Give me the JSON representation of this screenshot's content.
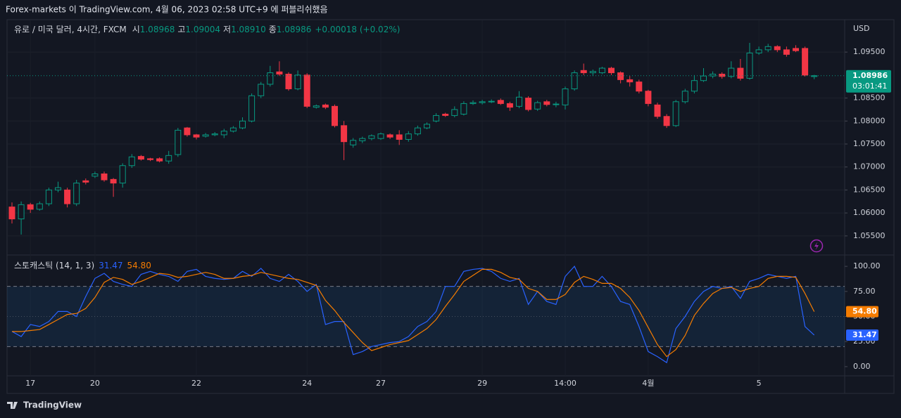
{
  "page_title": "Forex-markets 이 TradingView.com, 4월 06, 2023 02:58 UTC+9 에 퍼블리쉬했음",
  "brand": "TradingView",
  "chart_data": [
    {
      "type": "candlestick",
      "symbol": "유로 / 미국 달러, 4시간, FXCM",
      "currency": "USD",
      "ohlc_legend": [
        {
          "key": "시",
          "value": "1.08968"
        },
        {
          "key": "고",
          "value": "1.09004"
        },
        {
          "key": "저",
          "value": "1.08910"
        },
        {
          "key": "종",
          "value": "1.08986"
        }
      ],
      "change": "+0.00018 (+0.02%)",
      "last_price_label": "1.08986",
      "countdown": "03:01:41",
      "up_color": "#089981",
      "down_color": "#f23645",
      "categories": [
        null,
        null,
        "17",
        null,
        null,
        null,
        null,
        null,
        null,
        "20",
        null,
        null,
        null,
        null,
        null,
        null,
        null,
        null,
        null,
        null,
        "22",
        null,
        null,
        null,
        null,
        null,
        null,
        null,
        null,
        null,
        null,
        null,
        "24",
        null,
        null,
        null,
        null,
        null,
        null,
        null,
        "27",
        null,
        null,
        null,
        null,
        null,
        null,
        null,
        null,
        null,
        null,
        "29",
        null,
        null,
        null,
        null,
        null,
        null,
        null,
        null,
        "14:00",
        null,
        null,
        null,
        null,
        null,
        null,
        null,
        null,
        "4월",
        null,
        null,
        null,
        null,
        null,
        null,
        null,
        null,
        null,
        null,
        null,
        "5",
        null,
        null,
        null,
        null,
        null,
        null
      ],
      "open": [
        1.0613,
        1.0587,
        1.0618,
        1.0608,
        1.062,
        1.065,
        1.065,
        1.062,
        1.067,
        1.068,
        1.0685,
        1.0673,
        1.0665,
        1.0703,
        1.0723,
        1.0718,
        1.0718,
        1.0713,
        1.0727,
        1.0785,
        1.077,
        1.0767,
        1.077,
        1.077,
        1.0778,
        1.0785,
        1.08,
        1.0855,
        1.088,
        1.0907,
        1.0902,
        1.087,
        1.09,
        1.083,
        1.0835,
        1.0832,
        1.079,
        1.0748,
        1.0757,
        1.0762,
        1.0762,
        1.077,
        1.077,
        1.076,
        1.0772,
        1.0785,
        1.08,
        1.0815,
        1.0812,
        1.0815,
        1.0838,
        1.084,
        1.0842,
        1.0845,
        1.0838,
        1.0832,
        1.085,
        1.0826,
        1.0842,
        1.0836,
        1.0835,
        1.087,
        1.091,
        1.0905,
        1.0905,
        1.0915,
        1.0905,
        1.089,
        1.0885,
        1.0865,
        1.0835,
        1.081,
        1.079,
        1.0842,
        1.0865,
        1.0888,
        1.0898,
        1.0902,
        1.0897,
        1.0915,
        1.0893,
        1.0948,
        1.0955,
        1.0962,
        1.0955,
        1.0958,
        1.0958,
        1.08968
      ],
      "high": [
        1.0623,
        1.0625,
        1.0622,
        1.0625,
        1.0655,
        1.0668,
        1.0655,
        1.0672,
        1.0675,
        1.069,
        1.069,
        1.0676,
        1.0708,
        1.0728,
        1.0726,
        1.072,
        1.0721,
        1.0735,
        1.0785,
        1.0787,
        1.0772,
        1.0774,
        1.0776,
        1.0783,
        1.0789,
        1.0808,
        1.086,
        1.0885,
        1.092,
        1.093,
        1.0906,
        1.091,
        1.0904,
        1.0836,
        1.0838,
        1.0836,
        1.08,
        1.0763,
        1.0766,
        1.0771,
        1.0775,
        1.0773,
        1.078,
        1.0778,
        1.079,
        1.0797,
        1.0817,
        1.0818,
        1.0832,
        1.0843,
        1.0845,
        1.0846,
        1.0847,
        1.0849,
        1.0842,
        1.0865,
        1.0854,
        1.0844,
        1.0846,
        1.0842,
        1.0875,
        1.091,
        1.0925,
        1.0912,
        1.0918,
        1.0918,
        1.0908,
        1.0898,
        1.089,
        1.0868,
        1.084,
        1.0815,
        1.0846,
        1.087,
        1.09,
        1.0915,
        1.0908,
        1.0906,
        1.093,
        1.0935,
        1.097,
        1.0962,
        1.0968,
        1.0965,
        1.0962,
        1.0965,
        1.0962,
        1.09004
      ],
      "low": [
        1.0577,
        1.0553,
        1.06,
        1.0605,
        1.0615,
        1.0645,
        1.0612,
        1.0615,
        1.0662,
        1.0676,
        1.0668,
        1.0635,
        1.0655,
        1.0698,
        1.0714,
        1.0713,
        1.071,
        1.0707,
        1.0722,
        1.0766,
        1.076,
        1.0764,
        1.0767,
        1.0763,
        1.0775,
        1.0782,
        1.0797,
        1.085,
        1.0875,
        1.0898,
        1.0866,
        1.0867,
        1.0828,
        1.0827,
        1.0826,
        1.0786,
        1.0715,
        1.0742,
        1.0752,
        1.0758,
        1.0759,
        1.0761,
        1.0748,
        1.0755,
        1.0768,
        1.0782,
        1.0797,
        1.0809,
        1.0808,
        1.0812,
        1.0835,
        1.0836,
        1.0839,
        1.0835,
        1.0822,
        1.0828,
        1.0821,
        1.0822,
        1.0832,
        1.083,
        1.0825,
        1.0866,
        1.09,
        1.0898,
        1.0902,
        1.09,
        1.0882,
        1.0875,
        1.086,
        1.0832,
        1.0805,
        1.0785,
        1.0787,
        1.0838,
        1.086,
        1.0885,
        1.0893,
        1.0892,
        1.0893,
        1.0888,
        1.089,
        1.0944,
        1.095,
        1.095,
        1.094,
        1.095,
        1.0897,
        1.0891
      ],
      "close": [
        1.0587,
        1.0618,
        1.0608,
        1.062,
        1.065,
        1.0655,
        1.062,
        1.0665,
        1.0667,
        1.0685,
        1.0672,
        1.0665,
        1.0703,
        1.0722,
        1.0717,
        1.0716,
        1.0713,
        1.0725,
        1.078,
        1.077,
        1.0765,
        1.077,
        1.0772,
        1.0778,
        1.0785,
        1.08,
        1.0855,
        1.088,
        1.0905,
        1.0902,
        1.087,
        1.09,
        1.0832,
        1.0833,
        1.083,
        1.079,
        1.0755,
        1.0758,
        1.0762,
        1.0768,
        1.0772,
        1.0765,
        1.076,
        1.0772,
        1.0785,
        1.0793,
        1.0812,
        1.0812,
        1.0825,
        1.0838,
        1.084,
        1.0842,
        1.0843,
        1.0838,
        1.083,
        1.0852,
        1.0825,
        1.084,
        1.0836,
        1.0837,
        1.087,
        1.0905,
        1.0905,
        1.0908,
        1.0915,
        1.0905,
        1.089,
        1.0885,
        1.0865,
        1.0838,
        1.081,
        1.079,
        1.0842,
        1.0865,
        1.0888,
        1.0898,
        1.0902,
        1.0897,
        1.0915,
        1.0893,
        1.0948,
        1.0955,
        1.0962,
        1.0955,
        1.0945,
        1.0953,
        1.09,
        1.08986
      ],
      "ylim": [
        1.051,
        1.1019
      ],
      "yticks": [
        {
          "value": 1.055,
          "label": "1.05500"
        },
        {
          "value": 1.06,
          "label": "1.06000"
        },
        {
          "value": 1.065,
          "label": "1.06500"
        },
        {
          "value": 1.07,
          "label": "1.07000"
        },
        {
          "value": 1.075,
          "label": "1.07500"
        },
        {
          "value": 1.08,
          "label": "1.08000"
        },
        {
          "value": 1.085,
          "label": "1.08500"
        },
        {
          "value": 1.095,
          "label": "1.09500"
        }
      ],
      "grid": true
    },
    {
      "type": "line",
      "title": "스토캐스틱 (14, 1, 3)",
      "series": [
        {
          "color": "#2962ff",
          "value_label": "31.47",
          "values": [
            35,
            30,
            42,
            40,
            45,
            55,
            55,
            50,
            70,
            88,
            93,
            85,
            82,
            80,
            92,
            95,
            92,
            90,
            85,
            95,
            97,
            90,
            88,
            87,
            88,
            95,
            90,
            98,
            88,
            85,
            92,
            85,
            75,
            82,
            42,
            45,
            45,
            12,
            15,
            20,
            22,
            24,
            25,
            30,
            40,
            45,
            55,
            80,
            80,
            95,
            97,
            98,
            95,
            88,
            85,
            88,
            62,
            75,
            65,
            62,
            90,
            100,
            80,
            80,
            90,
            80,
            65,
            62,
            40,
            15,
            10,
            4,
            38,
            50,
            65,
            75,
            80,
            78,
            80,
            68,
            85,
            88,
            92,
            90,
            88,
            90,
            40,
            31.47
          ]
        },
        {
          "color": "#f57c00",
          "value_label": "54.80",
          "values": [
            35,
            35,
            36,
            37,
            42,
            47,
            52,
            53,
            58,
            69,
            84,
            89,
            87,
            82,
            85,
            89,
            93,
            92,
            89,
            90,
            92,
            94,
            92,
            88,
            88,
            90,
            91,
            94,
            92,
            90,
            88,
            87,
            84,
            81,
            66,
            56,
            44,
            34,
            24,
            16,
            19,
            22,
            24,
            26,
            32,
            38,
            47,
            60,
            72,
            85,
            91,
            97,
            97,
            94,
            89,
            87,
            78,
            75,
            67,
            67,
            72,
            84,
            90,
            87,
            83,
            83,
            78,
            69,
            56,
            39,
            22,
            10,
            17,
            31,
            51,
            63,
            73,
            78,
            79,
            75,
            78,
            80,
            88,
            90,
            90,
            89,
            73,
            54.8
          ]
        }
      ],
      "upper_band": 80,
      "middle_band": 50,
      "lower_band": 20,
      "ylim": [
        -9.2,
        110.6
      ],
      "yticks": [
        {
          "value": 0,
          "label": "0.00"
        },
        {
          "value": 25,
          "label": "25.00"
        },
        {
          "value": 50,
          "label": "50.00"
        },
        {
          "value": 75,
          "label": "75.00"
        },
        {
          "value": 100,
          "label": "100.00"
        }
      ]
    }
  ]
}
